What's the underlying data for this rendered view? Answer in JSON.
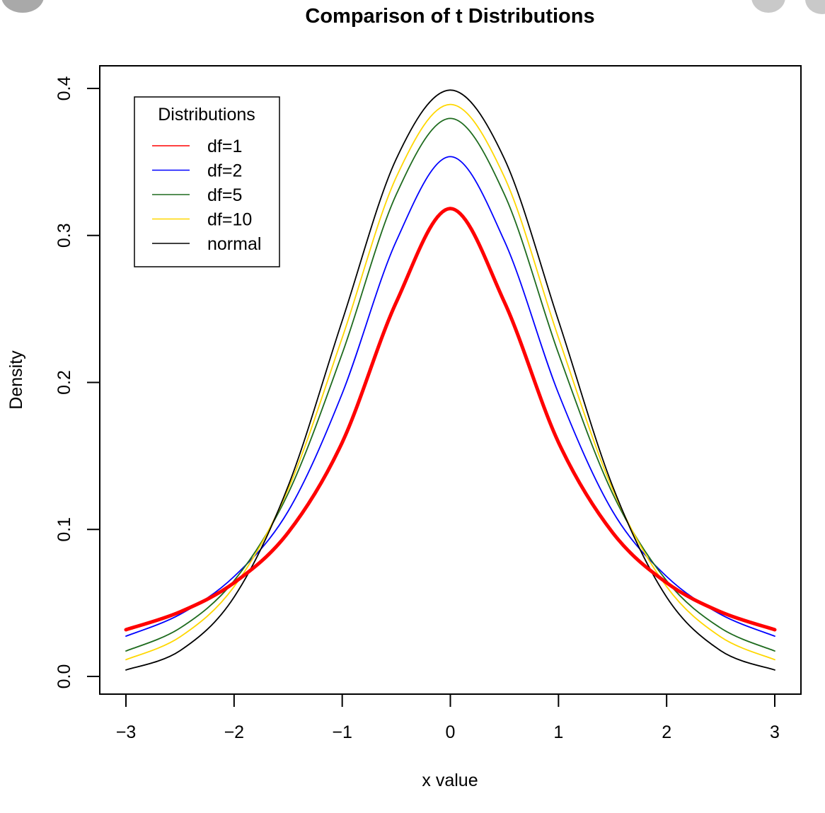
{
  "chart_data": {
    "type": "line",
    "title": "Comparison of t Distributions",
    "xlabel": "x value",
    "ylabel": "Density",
    "xlim": [
      -3,
      3
    ],
    "ylim": [
      0,
      0.4
    ],
    "x_ticks": [
      -3,
      -2,
      -1,
      0,
      1,
      2,
      3
    ],
    "x_tick_labels": [
      "−3",
      "−2",
      "−1",
      "0",
      "1",
      "2",
      "3"
    ],
    "y_ticks": [
      0,
      0.1,
      0.2,
      0.3,
      0.4
    ],
    "y_tick_labels": [
      "0.0",
      "0.1",
      "0.2",
      "0.3",
      "0.4"
    ],
    "grid": false,
    "legend": {
      "title": "Distributions",
      "position": "top-left"
    },
    "x": [
      -3,
      -2.5,
      -2,
      -1.5,
      -1,
      -0.5,
      0,
      0.5,
      1,
      1.5,
      2,
      2.5,
      3
    ],
    "series": [
      {
        "name": "df=1",
        "color": "#ff0000",
        "width": "thick",
        "values": [
          0.0318,
          0.0439,
          0.0637,
          0.0979,
          0.1592,
          0.2546,
          0.3183,
          0.2546,
          0.1592,
          0.0979,
          0.0637,
          0.0439,
          0.0318
        ]
      },
      {
        "name": "df=2",
        "color": "#0000ff",
        "width": "thin",
        "values": [
          0.0274,
          0.0422,
          0.068,
          0.1124,
          0.1925,
          0.2962,
          0.3536,
          0.2962,
          0.1925,
          0.1124,
          0.068,
          0.0422,
          0.0274
        ]
      },
      {
        "name": "df=5",
        "color": "#1e6b1e",
        "width": "thin",
        "values": [
          0.0173,
          0.0329,
          0.0651,
          0.1245,
          0.2197,
          0.3279,
          0.3796,
          0.3279,
          0.2197,
          0.1245,
          0.0651,
          0.0329,
          0.0173
        ]
      },
      {
        "name": "df=10",
        "color": "#ffd700",
        "width": "thin",
        "values": [
          0.0114,
          0.0269,
          0.0611,
          0.1274,
          0.2304,
          0.3397,
          0.3891,
          0.3397,
          0.2304,
          0.1274,
          0.0611,
          0.0269,
          0.0114
        ]
      },
      {
        "name": "normal",
        "color": "#000000",
        "width": "thin",
        "values": [
          0.0044,
          0.0175,
          0.054,
          0.1295,
          0.242,
          0.3521,
          0.3989,
          0.3521,
          0.242,
          0.1295,
          0.054,
          0.0175,
          0.0044
        ]
      }
    ]
  }
}
